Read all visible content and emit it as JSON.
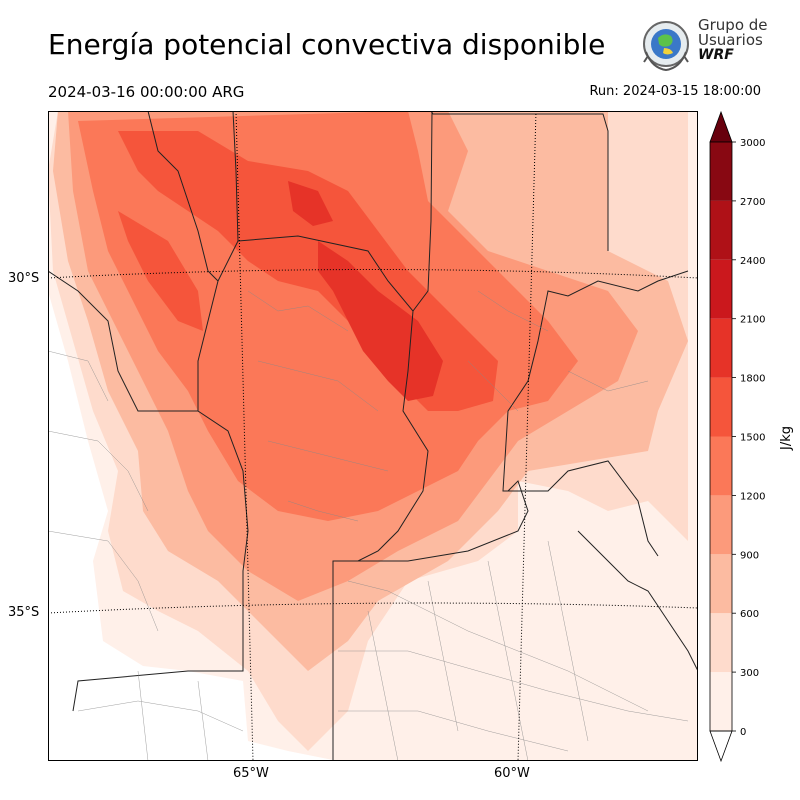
{
  "header": {
    "title": "Energía potencial convectiva disponible",
    "valid_time": "2024-03-16 00:00:00 ARG",
    "run_time": "Run: 2024-03-15 18:00:00"
  },
  "logo": {
    "line1": "Grupo de",
    "line2": "Usuarios",
    "line3": "WRF"
  },
  "map": {
    "lat_labels": [
      "30°S",
      "35°S"
    ],
    "lon_labels": [
      "65°W",
      "60°W"
    ]
  },
  "colorbar": {
    "unit": "J/kg",
    "ticks": [
      "0",
      "300",
      "600",
      "900",
      "1200",
      "1500",
      "1800",
      "2100",
      "2400",
      "2700",
      "3000"
    ],
    "colors": [
      "#fff0e9",
      "#fedbcc",
      "#fcbba1",
      "#fc9a7b",
      "#fb7858",
      "#f5553b",
      "#e63328",
      "#cb181d",
      "#af1117",
      "#880812"
    ],
    "overflow_color": "#67000d"
  },
  "chart_data": {
    "type": "heatmap",
    "variable": "CAPE",
    "unit": "J/kg",
    "range": [
      0,
      3000
    ],
    "levels": [
      0,
      300,
      600,
      900,
      1200,
      1500,
      1800,
      2100,
      2400,
      2700,
      3000
    ],
    "extend": "max"
  }
}
